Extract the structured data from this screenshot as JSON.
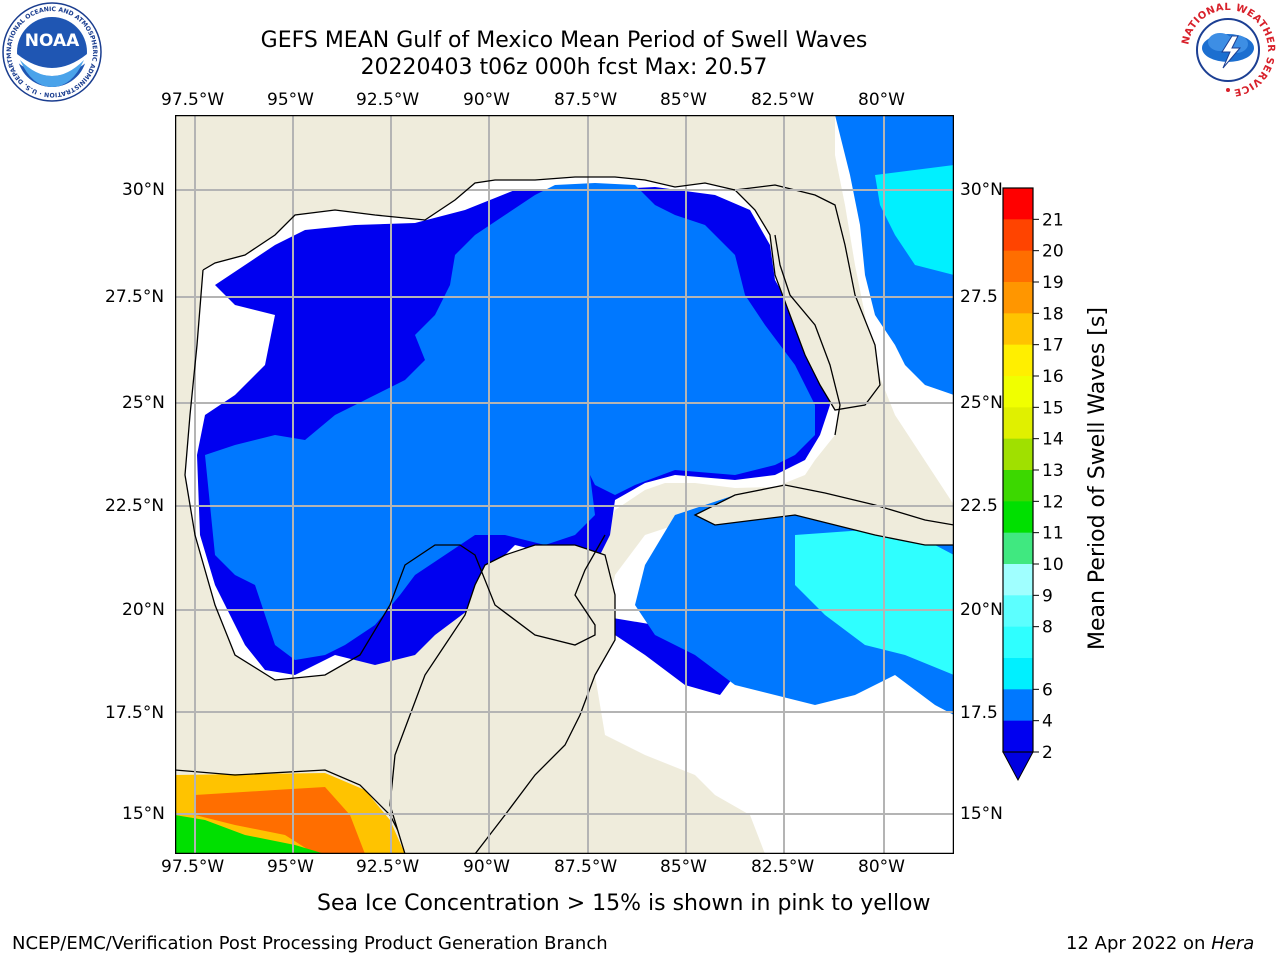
{
  "header": {
    "title": "GEFS MEAN Gulf of Mexico Mean Period of Swell Waves",
    "subtitle": "20220403 t06z 000h fcst   Max: 20.57"
  },
  "logos": {
    "noaa_text": "NOAA",
    "noaa_ring": "NATIONAL OCEANIC AND ATMOSPHERIC ADMINISTRATION · U.S. DEPARTMENT OF COMMERCE",
    "nws_ring": "NATIONAL WEATHER SERVICE"
  },
  "map": {
    "lon_labels": [
      "97.5°W",
      "95°W",
      "92.5°W",
      "90°W",
      "87.5°W",
      "85°W",
      "82.5°W",
      "80°W"
    ],
    "lat_labels_left": [
      "30°N",
      "27.5°N",
      "25°N",
      "22.5°N",
      "20°N",
      "17.5°N",
      "15°N"
    ],
    "lat_labels_right": [
      "30°N",
      "27.5",
      "25°N",
      "22.5",
      "20°N",
      "17.5",
      "15°N"
    ],
    "colors": {
      "land": "#efecdc",
      "no_data": "#ffffff",
      "grid": "#b4b4b4",
      "coast": "#000000"
    },
    "field_regions": {
      "deep_gulf": 5,
      "shelf_band": 3,
      "atlantic_east": 6,
      "caribbean_east": 7,
      "pacific_southwest": 17
    }
  },
  "colorbar": {
    "label": "Mean Period of Swell Waves [s]",
    "ticks": [
      "21",
      "20",
      "19",
      "18",
      "17",
      "16",
      "15",
      "14",
      "13",
      "12",
      "11",
      "10",
      "9",
      "8",
      "6",
      "4",
      "2"
    ],
    "levels": [
      2,
      4,
      6,
      7,
      8,
      9,
      10,
      11,
      12,
      13,
      14,
      15,
      16,
      17,
      18,
      19,
      20,
      21
    ],
    "colors": [
      "#0000f0",
      "#0078ff",
      "#00f0ff",
      "#2fffff",
      "#5cffff",
      "#a0ffff",
      "#40e880",
      "#00e000",
      "#3cd800",
      "#a0e000",
      "#e0f000",
      "#f0ff00",
      "#ffef00",
      "#ffc300",
      "#ff9600",
      "#ff6e00",
      "#ff4400",
      "#ff0000"
    ],
    "extend_color": "#0000e0"
  },
  "note": "Sea Ice Concentration > 15% is shown in pink to yellow",
  "footer": {
    "left": "NCEP/EMC/Verification Post Processing Product Generation Branch",
    "date": "12 Apr 2022 on",
    "host": "Hera"
  }
}
